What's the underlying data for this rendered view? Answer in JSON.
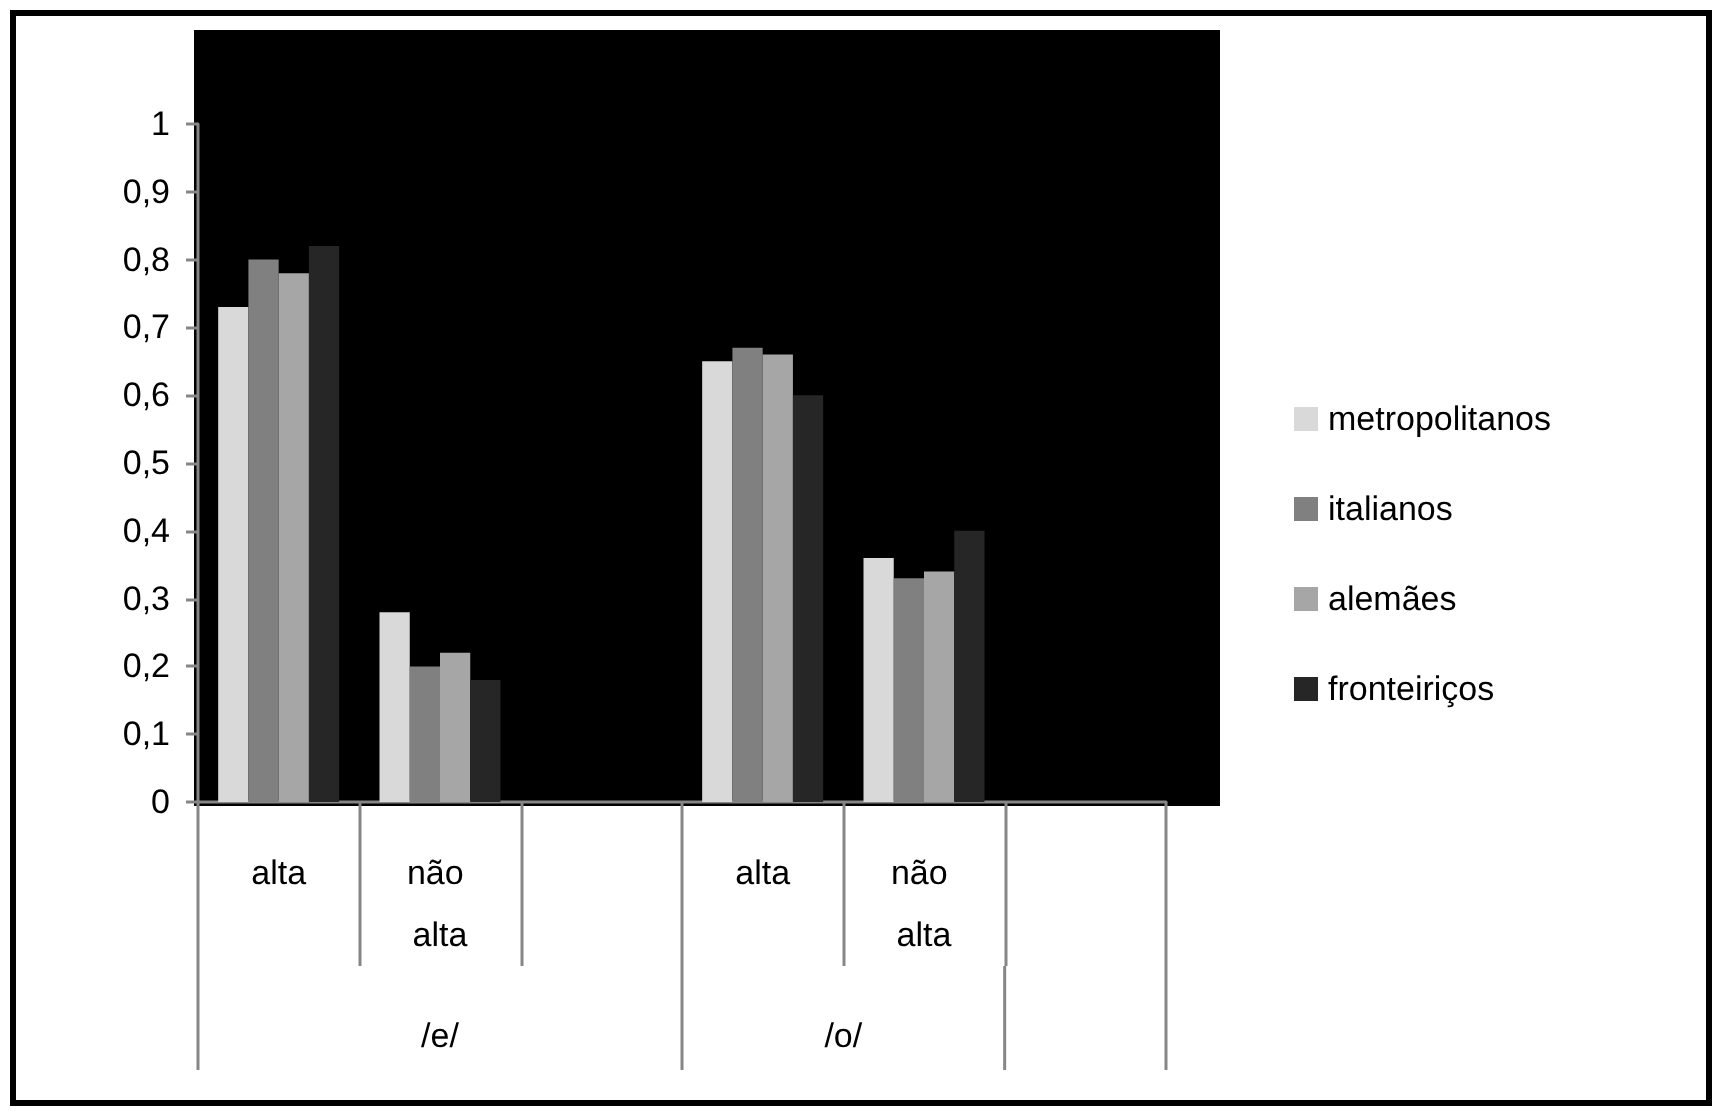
{
  "chart_data": {
    "type": "bar",
    "categories": [
      "alta",
      "não alta",
      null,
      "alta",
      "não alta",
      null
    ],
    "series": [
      {
        "name": "metropolitanos",
        "color": "#d9d9d9",
        "values": [
          0.73,
          0.28,
          null,
          0.65,
          0.36,
          null
        ]
      },
      {
        "name": "italianos",
        "color": "#808080",
        "values": [
          0.8,
          0.2,
          null,
          0.67,
          0.33,
          null
        ]
      },
      {
        "name": "alemães",
        "color": "#a6a6a6",
        "values": [
          0.78,
          0.22,
          null,
          0.66,
          0.34,
          null
        ]
      },
      {
        "name": "fronteiriços",
        "color": "#262626",
        "values": [
          0.82,
          0.18,
          null,
          0.6,
          0.4,
          null
        ]
      }
    ],
    "ylim": [
      0,
      1
    ],
    "yticks": [
      0,
      {
        "value": 0.1,
        "label": "0,1"
      },
      {
        "value": 0.2,
        "label": "0,2"
      },
      {
        "value": 0.3,
        "label": "0,3"
      },
      {
        "value": 0.4,
        "label": "0,4"
      },
      {
        "value": 0.5,
        "label": "0,5"
      },
      {
        "value": 0.6,
        "label": "0,6"
      },
      {
        "value": 0.7,
        "label": "0,7"
      },
      {
        "value": 0.8,
        "label": "0,8"
      },
      {
        "value": 0.9,
        "label": "0,9"
      },
      1
    ],
    "annotations": [
      "/e/",
      "/o/"
    ],
    "legend": "right"
  }
}
